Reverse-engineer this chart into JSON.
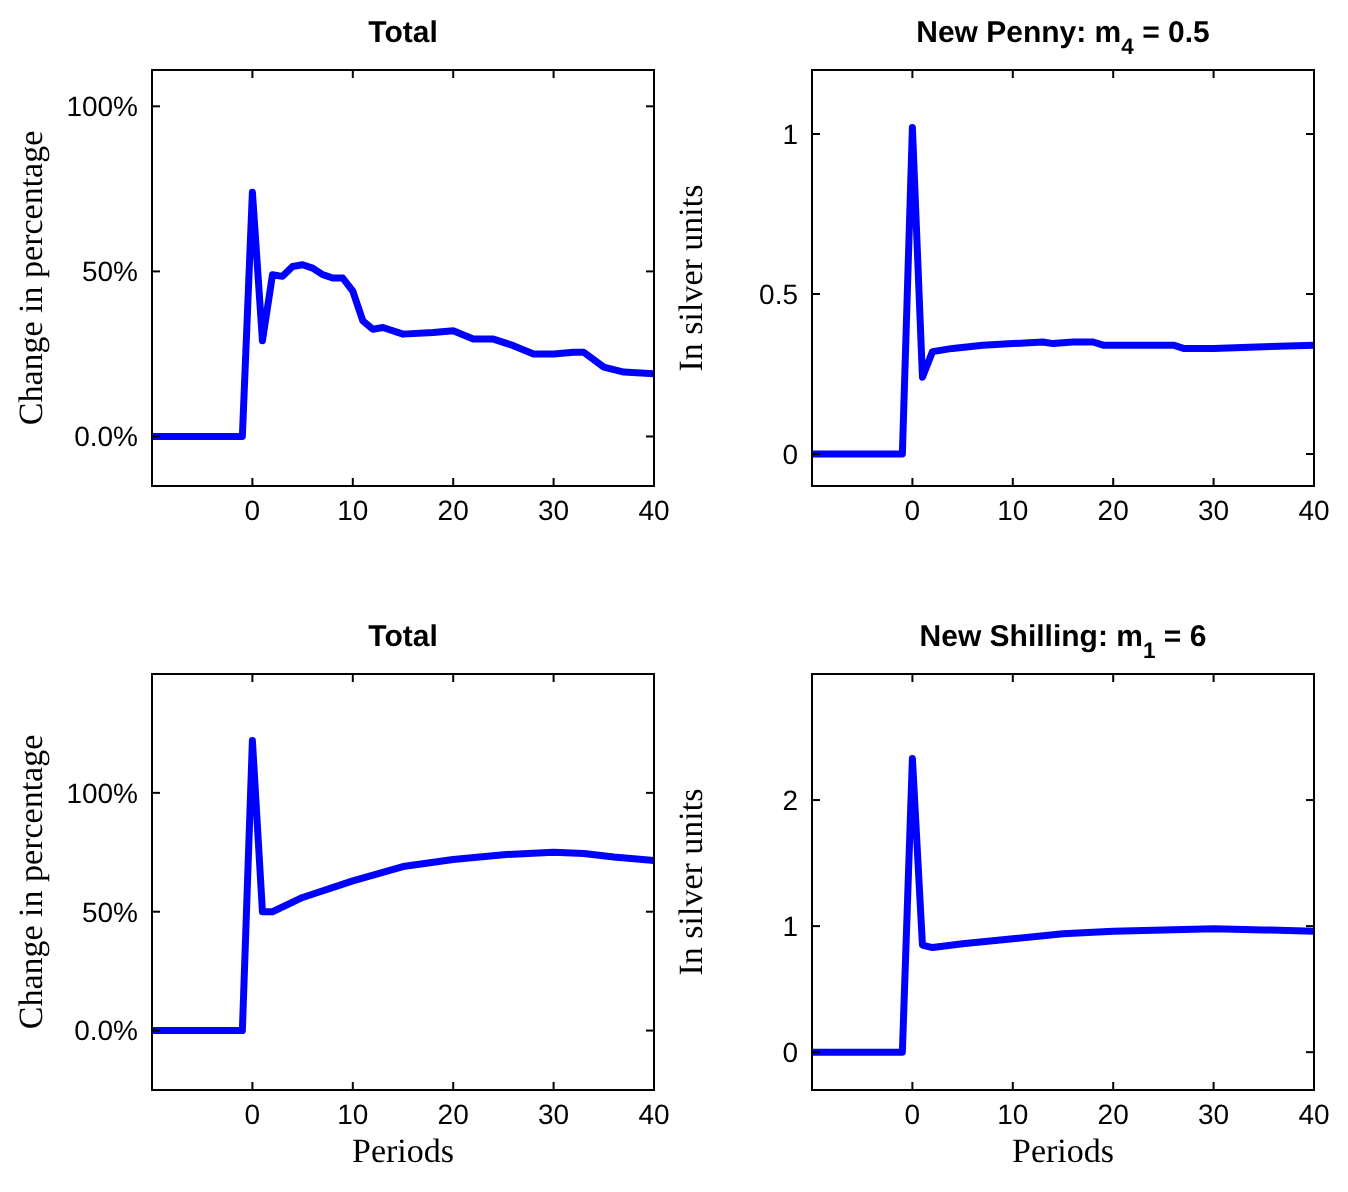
{
  "chart_data": [
    {
      "type": "line",
      "title": "Total",
      "ylabel": "Change in percentage",
      "x": [
        -10,
        -1,
        0,
        1,
        2,
        3,
        4,
        5,
        6,
        7,
        8,
        9,
        10,
        11,
        12,
        13,
        15,
        18,
        20,
        22,
        24,
        26,
        28,
        30,
        32,
        33,
        35,
        37,
        40
      ],
      "series": [
        {
          "color": "#0000ff",
          "values": [
            0,
            0,
            74,
            29,
            49,
            48.5,
            51.5,
            52,
            51,
            49,
            48,
            48,
            44,
            35,
            32.5,
            33,
            31,
            31.5,
            32,
            29.5,
            29.5,
            27.5,
            25,
            25,
            25.5,
            25.5,
            21,
            19.5,
            19
          ]
        }
      ],
      "xlim": [
        -10,
        40
      ],
      "xticks": [
        0,
        10,
        20,
        30,
        40
      ],
      "ylim": [
        -15,
        111
      ],
      "yticks": [
        {
          "value": 0,
          "label": "0.0%"
        },
        {
          "value": 50,
          "label": "50%"
        },
        {
          "value": 100,
          "label": "100%"
        }
      ]
    },
    {
      "type": "line",
      "title": "New Penny: m$_{4}$ = 0.5",
      "ylabel": "In silver units",
      "x": [
        -10,
        -1,
        0,
        1,
        2,
        4,
        7,
        10,
        13,
        14,
        16,
        18,
        19,
        22,
        26,
        27,
        30,
        35,
        40
      ],
      "series": [
        {
          "color": "#0000ff",
          "values": [
            0,
            0,
            1.02,
            0.24,
            0.32,
            0.33,
            0.34,
            0.345,
            0.35,
            0.345,
            0.35,
            0.35,
            0.34,
            0.34,
            0.34,
            0.33,
            0.33,
            0.335,
            0.34
          ]
        }
      ],
      "xlim": [
        -10,
        40
      ],
      "xticks": [
        0,
        10,
        20,
        30,
        40
      ],
      "ylim": [
        -0.1,
        1.2
      ],
      "yticks": [
        0,
        0.5,
        1
      ]
    },
    {
      "type": "line",
      "title": "Total",
      "xlabel": "Periods",
      "ylabel": "Change in percentage",
      "x": [
        -10,
        -1,
        0,
        1,
        2,
        5,
        10,
        15,
        20,
        25,
        30,
        33,
        36,
        40
      ],
      "series": [
        {
          "color": "#0000ff",
          "values": [
            0,
            0,
            122,
            50,
            50,
            56,
            63,
            69,
            72,
            74,
            75,
            74.5,
            73,
            71.5
          ]
        }
      ],
      "xlim": [
        -10,
        40
      ],
      "xticks": [
        0,
        10,
        20,
        30,
        40
      ],
      "ylim": [
        -25,
        150
      ],
      "yticks": [
        {
          "value": 0,
          "label": "0.0%"
        },
        {
          "value": 50,
          "label": "50%"
        },
        {
          "value": 100,
          "label": "100%"
        }
      ]
    },
    {
      "type": "line",
      "title": "New Shilling: m$_{1}$ = 6",
      "xlabel": "Periods",
      "ylabel": "In silver units",
      "x": [
        -10,
        -1,
        0,
        1,
        2,
        5,
        10,
        15,
        20,
        25,
        30,
        35,
        40
      ],
      "series": [
        {
          "color": "#0000ff",
          "values": [
            0,
            0,
            2.33,
            0.85,
            0.83,
            0.86,
            0.9,
            0.94,
            0.96,
            0.97,
            0.98,
            0.97,
            0.96
          ]
        }
      ],
      "xlim": [
        -10,
        40
      ],
      "xticks": [
        0,
        10,
        20,
        30,
        40
      ],
      "ylim": [
        -0.3,
        3
      ],
      "yticks": [
        0,
        1,
        2
      ]
    }
  ]
}
